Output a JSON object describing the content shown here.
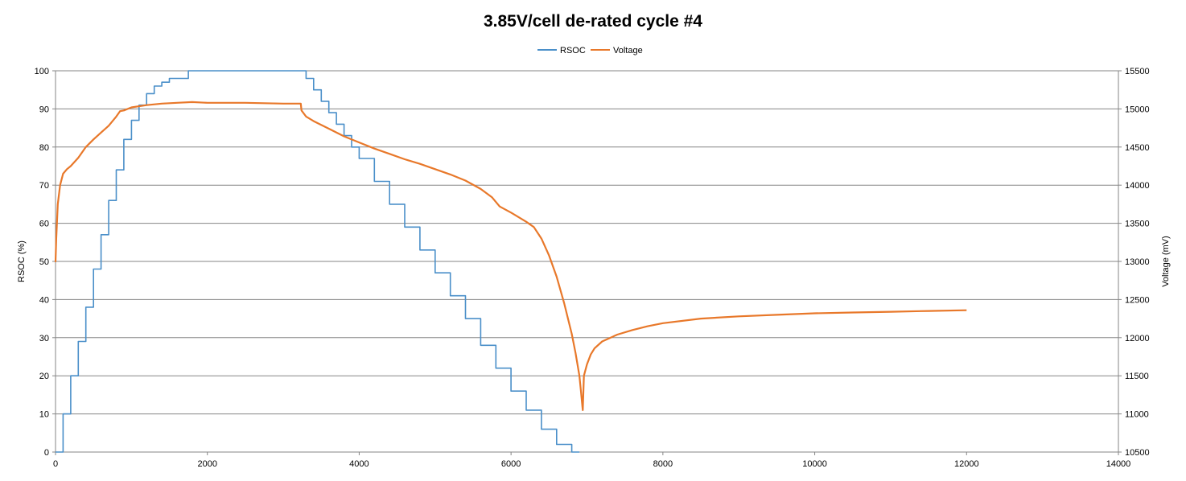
{
  "chart_data": {
    "type": "line",
    "title": "3.85V/cell de-rated cycle #4",
    "xlabel": "",
    "ylabel": "RSOC (%)",
    "y2label": "Voltage (mV)",
    "xlim": [
      0,
      14000
    ],
    "ylim": [
      0,
      100
    ],
    "y2lim": [
      10500,
      15500
    ],
    "x_ticks": [
      "0",
      "2000",
      "4000",
      "6000",
      "8000",
      "10000",
      "12000",
      "14000"
    ],
    "y_ticks": [
      "0",
      "10",
      "20",
      "30",
      "40",
      "50",
      "60",
      "70",
      "80",
      "90",
      "100"
    ],
    "y2_ticks": [
      "10500",
      "11000",
      "11500",
      "12000",
      "12500",
      "13000",
      "13500",
      "14000",
      "14500",
      "15000",
      "15500"
    ],
    "grid": true,
    "legend_position": "top-center",
    "series": [
      {
        "name": "RSOC",
        "axis": "left",
        "color": "#4a8fc9",
        "step": true,
        "x": [
          0,
          100,
          200,
          300,
          400,
          500,
          600,
          700,
          800,
          900,
          1000,
          1100,
          1200,
          1300,
          1400,
          1500,
          1600,
          1700,
          1750,
          1760,
          3250,
          3300,
          3400,
          3500,
          3600,
          3700,
          3800,
          3900,
          4000,
          4200,
          4400,
          4600,
          4800,
          5000,
          5200,
          5400,
          5600,
          5800,
          6000,
          6200,
          6400,
          6600,
          6800,
          6900
        ],
        "y": [
          0,
          10,
          20,
          29,
          38,
          48,
          57,
          66,
          74,
          82,
          87,
          91,
          94,
          96,
          97,
          98,
          98,
          98,
          100,
          100,
          100,
          98,
          95,
          92,
          89,
          86,
          83,
          80,
          77,
          71,
          65,
          59,
          53,
          47,
          41,
          35,
          28,
          22,
          16,
          11,
          6,
          2,
          0,
          0
        ]
      },
      {
        "name": "Voltage",
        "axis": "right",
        "color": "#e8782a",
        "step": false,
        "x": [
          0,
          10,
          30,
          60,
          100,
          150,
          200,
          300,
          400,
          500,
          600,
          700,
          800,
          850,
          900,
          1000,
          1200,
          1400,
          1600,
          1800,
          2000,
          2500,
          3000,
          3230,
          3240,
          3300,
          3400,
          3600,
          3800,
          4000,
          4200,
          4400,
          4600,
          4800,
          5000,
          5200,
          5400,
          5600,
          5750,
          5850,
          6000,
          6200,
          6300,
          6400,
          6500,
          6600,
          6700,
          6800,
          6850,
          6900,
          6920,
          6940,
          6945,
          6960,
          7000,
          7050,
          7100,
          7200,
          7400,
          7600,
          7800,
          8000,
          8500,
          9000,
          9500,
          10000,
          10500,
          11000,
          11500,
          12000
        ],
        "y": [
          12990,
          13300,
          13750,
          14000,
          14150,
          14210,
          14250,
          14360,
          14500,
          14600,
          14690,
          14780,
          14900,
          14970,
          14980,
          15020,
          15050,
          15070,
          15080,
          15090,
          15080,
          15080,
          15070,
          15070,
          14980,
          14900,
          14840,
          14740,
          14640,
          14560,
          14480,
          14410,
          14340,
          14280,
          14210,
          14140,
          14060,
          13950,
          13840,
          13720,
          13640,
          13520,
          13450,
          13300,
          13080,
          12800,
          12450,
          12050,
          11800,
          11500,
          11300,
          11100,
          11050,
          11500,
          11650,
          11780,
          11860,
          11950,
          12040,
          12100,
          12150,
          12190,
          12250,
          12280,
          12300,
          12320,
          12330,
          12340,
          12350,
          12360
        ]
      }
    ]
  }
}
